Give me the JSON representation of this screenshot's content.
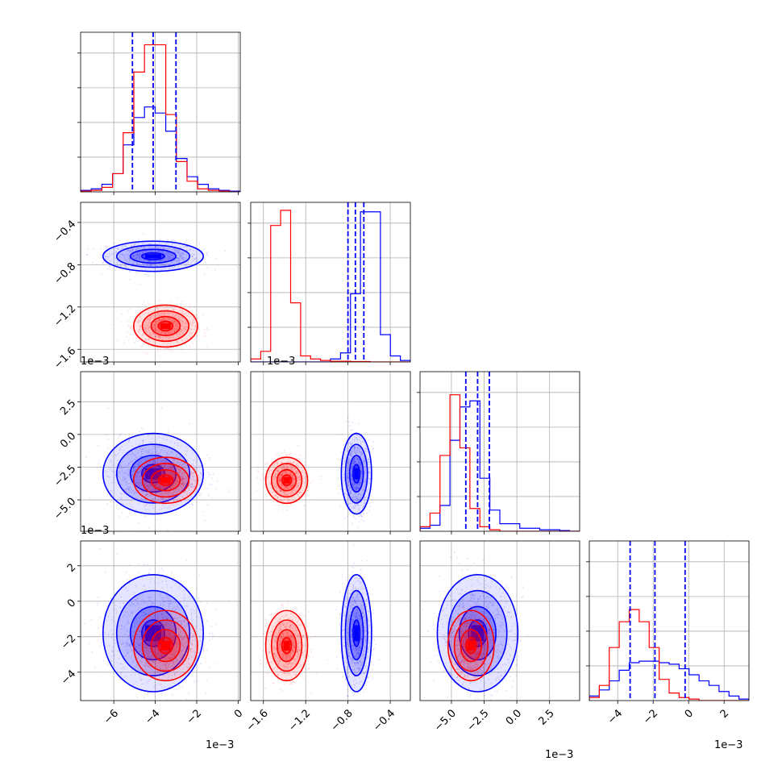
{
  "chart_data": {
    "type": "corner",
    "colors": {
      "series_a": "#0000ff",
      "series_b": "#ff0000",
      "grid": "#b0b0b0"
    },
    "grid": true,
    "legend": "none",
    "series": [
      {
        "color": "#0000ff",
        "mean": [
          -0.0041,
          -0.00072,
          -0.003,
          -0.0018
        ],
        "std": [
          0.0011,
          6.5e-05,
          0.0014,
          0.0015
        ]
      },
      {
        "color": "#ff0000",
        "mean": [
          -0.0035,
          -0.00138,
          -0.0035,
          -0.0025
        ],
        "std": [
          0.0007,
          9e-05,
          0.0008,
          0.0009
        ]
      }
    ],
    "quantiles_series": "blue",
    "quantiles": [
      [
        -0.0051,
        -0.0041,
        -0.003
      ],
      [
        -0.0008,
        -0.00073,
        -0.00065
      ],
      [
        -0.0039,
        -0.003,
        -0.0021
      ],
      [
        -0.0033,
        -0.0019,
        -0.0002
      ]
    ],
    "axis_ranges": [
      [
        -0.0076,
        0.0001
      ],
      [
        -0.00172,
        -0.00021
      ],
      [
        -0.0074,
        0.0048
      ],
      [
        -0.0056,
        0.0034
      ]
    ],
    "ticks": [
      {
        "values": [
          -0.006,
          -0.004,
          -0.002,
          0.0
        ],
        "labels": [
          "−6",
          "−4",
          "−2",
          "0"
        ]
      },
      {
        "values": [
          -0.0016,
          -0.0012,
          -0.0008,
          -0.0004
        ],
        "labels": [
          "−1.6",
          "−1.2",
          "−0.8",
          "−0.4"
        ]
      },
      {
        "values": [
          -0.005,
          -0.0025,
          0.0,
          0.0025
        ],
        "labels": [
          "−5.0",
          "−2.5",
          "0.0",
          "2.5"
        ]
      },
      {
        "values": [
          -0.004,
          -0.002,
          0.0,
          0.002
        ],
        "labels": [
          "−4",
          "−2",
          "0",
          "2"
        ]
      }
    ],
    "offset_label": "1e−3",
    "histograms": {
      "blue": [
        [
          0.01,
          0.02,
          0.05,
          0.12,
          0.31,
          0.49,
          0.56,
          0.52,
          0.4,
          0.22,
          0.1,
          0.05,
          0.02,
          0.01,
          0.005
        ],
        [
          0,
          0,
          0,
          0,
          0,
          0,
          0,
          0,
          0.02,
          0.06,
          0.45,
          0.99,
          0.99,
          0.18,
          0.04,
          0.01
        ],
        [
          0.02,
          0.04,
          0.17,
          0.6,
          0.82,
          0.86,
          0.35,
          0.14,
          0.05,
          0.05,
          0.02,
          0.02,
          0.01,
          0.01,
          0.005,
          0
        ],
        [
          0.03,
          0.07,
          0.13,
          0.2,
          0.25,
          0.26,
          0.26,
          0.25,
          0.24,
          0.21,
          0.17,
          0.13,
          0.1,
          0.06,
          0.03,
          0.01
        ]
      ],
      "red": [
        [
          0.005,
          0.01,
          0.03,
          0.12,
          0.39,
          0.79,
          0.97,
          0.97,
          0.51,
          0.2,
          0.07,
          0.02,
          0.01,
          0.005,
          0
        ],
        [
          0.02,
          0.07,
          0.9,
          1.0,
          0.39,
          0.04,
          0.02,
          0.01,
          0.005,
          0.005,
          0.003,
          0.003,
          0,
          0,
          0,
          0
        ],
        [
          0.03,
          0.12,
          0.5,
          0.9,
          0.55,
          0.15,
          0.03,
          0.01,
          0,
          0,
          0,
          0,
          0,
          0,
          0,
          0
        ],
        [
          0.02,
          0.1,
          0.35,
          0.52,
          0.6,
          0.52,
          0.35,
          0.14,
          0.05,
          0.02,
          0.01,
          0,
          0,
          0,
          0,
          0
        ]
      ]
    },
    "hist_ylim_relative": [
      0,
      1.05
    ]
  }
}
